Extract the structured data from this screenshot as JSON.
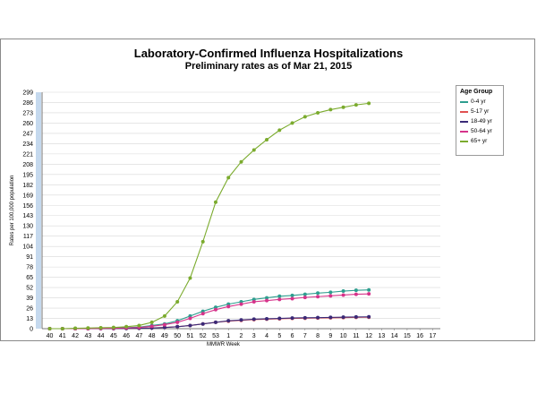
{
  "chart_data": {
    "type": "line",
    "title": "Laboratory-Confirmed Influenza Hospitalizations",
    "subtitle": "Preliminary rates as of Mar 21, 2015",
    "xlabel": "MMWR Week",
    "ylabel": "Rates per 100,000 population",
    "categories": [
      "40",
      "41",
      "42",
      "43",
      "44",
      "45",
      "46",
      "47",
      "48",
      "49",
      "50",
      "51",
      "52",
      "53",
      "1",
      "2",
      "3",
      "4",
      "5",
      "6",
      "7",
      "8",
      "9",
      "10",
      "11",
      "12",
      "13",
      "14",
      "15",
      "16",
      "17"
    ],
    "yticks": [
      0,
      13,
      26,
      39,
      52,
      65,
      78,
      91,
      104,
      117,
      130,
      143,
      156,
      169,
      182,
      195,
      208,
      221,
      234,
      247,
      260,
      273,
      286,
      299
    ],
    "ylim": [
      0,
      299
    ],
    "legend_title": "Age Group",
    "legend_position": "right",
    "series": [
      {
        "name": "0-4 yr",
        "color": "#2e9e8f",
        "values": [
          0,
          0,
          0,
          0.3,
          0.5,
          0.8,
          1.2,
          2,
          4,
          6,
          10,
          16,
          22,
          27,
          31,
          34,
          37,
          39,
          41,
          42,
          43.5,
          45,
          46,
          47.5,
          48.5,
          49,
          null,
          null,
          null,
          null,
          null
        ]
      },
      {
        "name": "5-17 yr",
        "color": "#e05050",
        "values": [
          0,
          0,
          0,
          0,
          0.1,
          0.2,
          0.3,
          0.5,
          1,
          1.5,
          2.5,
          4,
          6,
          8,
          9.5,
          10.5,
          11.5,
          12,
          12.5,
          13,
          13.2,
          13.5,
          13.7,
          14,
          14.3,
          14.5,
          null,
          null,
          null,
          null,
          null
        ]
      },
      {
        "name": "18-49 yr",
        "color": "#3a2a78",
        "values": [
          0,
          0,
          0,
          0,
          0.1,
          0.2,
          0.3,
          0.5,
          0.8,
          1.5,
          2.5,
          4,
          6,
          8,
          10,
          11,
          12,
          12.5,
          13,
          13.5,
          13.8,
          14,
          14.3,
          14.6,
          14.8,
          15,
          null,
          null,
          null,
          null,
          null
        ]
      },
      {
        "name": "50-64 yr",
        "color": "#d6338a",
        "values": [
          0,
          0,
          0,
          0.2,
          0.4,
          0.6,
          1,
          1.5,
          3,
          5,
          8,
          13,
          19,
          24,
          28,
          31,
          34,
          35.5,
          37,
          38,
          39.5,
          40.5,
          41.5,
          42.5,
          43.5,
          44,
          null,
          null,
          null,
          null,
          null
        ]
      },
      {
        "name": "65+ yr",
        "color": "#7bab2e",
        "values": [
          0,
          0,
          0.5,
          0.8,
          1.2,
          1.5,
          2.5,
          4,
          8,
          16,
          34,
          64,
          110,
          160,
          191,
          211,
          226,
          239,
          251,
          260,
          268,
          273,
          277,
          280,
          283,
          285,
          null,
          null,
          null,
          null,
          null
        ]
      }
    ]
  }
}
